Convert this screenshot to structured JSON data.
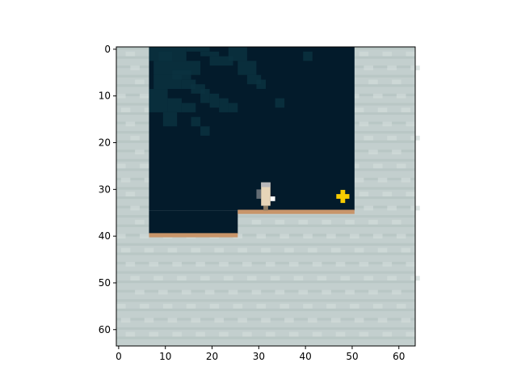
{
  "grid": {
    "cols": 64,
    "rows": 64
  },
  "x_ticks": [
    {
      "value": 0,
      "label": "0"
    },
    {
      "value": 10,
      "label": "10"
    },
    {
      "value": 20,
      "label": "20"
    },
    {
      "value": 30,
      "label": "30"
    },
    {
      "value": 40,
      "label": "40"
    },
    {
      "value": 50,
      "label": "50"
    },
    {
      "value": 60,
      "label": "60"
    }
  ],
  "y_ticks": [
    {
      "value": 0,
      "label": "0"
    },
    {
      "value": 10,
      "label": "10"
    },
    {
      "value": 20,
      "label": "20"
    },
    {
      "value": 30,
      "label": "30"
    },
    {
      "value": 40,
      "label": "40"
    },
    {
      "value": 50,
      "label": "50"
    },
    {
      "value": 60,
      "label": "60"
    }
  ],
  "colors": {
    "wall": "#c3cfce",
    "wall_stripe": "#b3c1c0",
    "sky": "#031b2b",
    "sky_texture": "#0b3140",
    "ledge": "#c8956a",
    "goal": "#f8cc00",
    "player_body": "#e6d5b8",
    "player_shadow": "#8d8f93"
  },
  "scene": {
    "sky_region": {
      "x0": 7,
      "x1": 51,
      "y0": 0,
      "y1": 40
    },
    "lower_floor": {
      "x0": 7,
      "x1": 26,
      "y": 40
    },
    "upper_floor": {
      "x0": 26,
      "x1": 51,
      "y": 35
    },
    "ledges": [
      {
        "x0": 7,
        "x1": 26,
        "y": 40
      },
      {
        "x0": 26,
        "x1": 51,
        "y": 35
      }
    ],
    "player": {
      "x": 32,
      "y": 32
    },
    "goal": {
      "x": 48.5,
      "y": 32
    }
  }
}
